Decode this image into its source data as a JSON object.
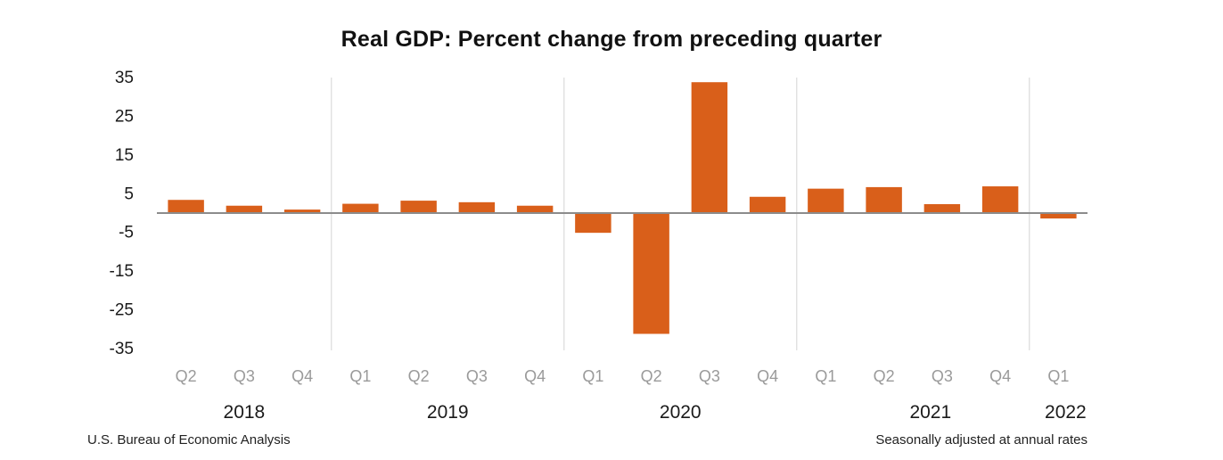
{
  "chart_data": {
    "type": "bar",
    "title": "Real GDP:  Percent change from preceding quarter",
    "xlabel": "",
    "ylabel": "",
    "ylim": [
      -35,
      35
    ],
    "yticks": [
      35,
      25,
      15,
      5,
      -5,
      -15,
      -25,
      -35
    ],
    "categories": [
      "Q2",
      "Q3",
      "Q4",
      "Q1",
      "Q2",
      "Q3",
      "Q4",
      "Q1",
      "Q2",
      "Q3",
      "Q4",
      "Q1",
      "Q2",
      "Q3",
      "Q4",
      "Q1"
    ],
    "years": [
      {
        "label": "2018",
        "start": 0,
        "end": 2
      },
      {
        "label": "2019",
        "start": 3,
        "end": 6
      },
      {
        "label": "2020",
        "start": 7,
        "end": 10
      },
      {
        "label": "2021",
        "start": 11,
        "end": 14
      },
      {
        "label": "2022",
        "start": 15,
        "end": 15
      }
    ],
    "series": [
      {
        "name": "Real GDP percent change",
        "values": [
          3.4,
          1.9,
          0.9,
          2.4,
          3.2,
          2.8,
          1.9,
          -5.1,
          -31.2,
          33.8,
          4.2,
          6.3,
          6.7,
          2.3,
          6.9,
          -1.4
        ],
        "color": "#d95f1a"
      }
    ]
  },
  "footer": {
    "source": "U.S. Bureau of Economic Analysis",
    "note": "Seasonally adjusted at annual rates"
  },
  "colors": {
    "bar": "#d95f1a",
    "axis": "#8c8c8c",
    "separator": "#dcdcdc",
    "tick_label": "#1a1a1a",
    "quarter_label": "#9a9a9a"
  }
}
